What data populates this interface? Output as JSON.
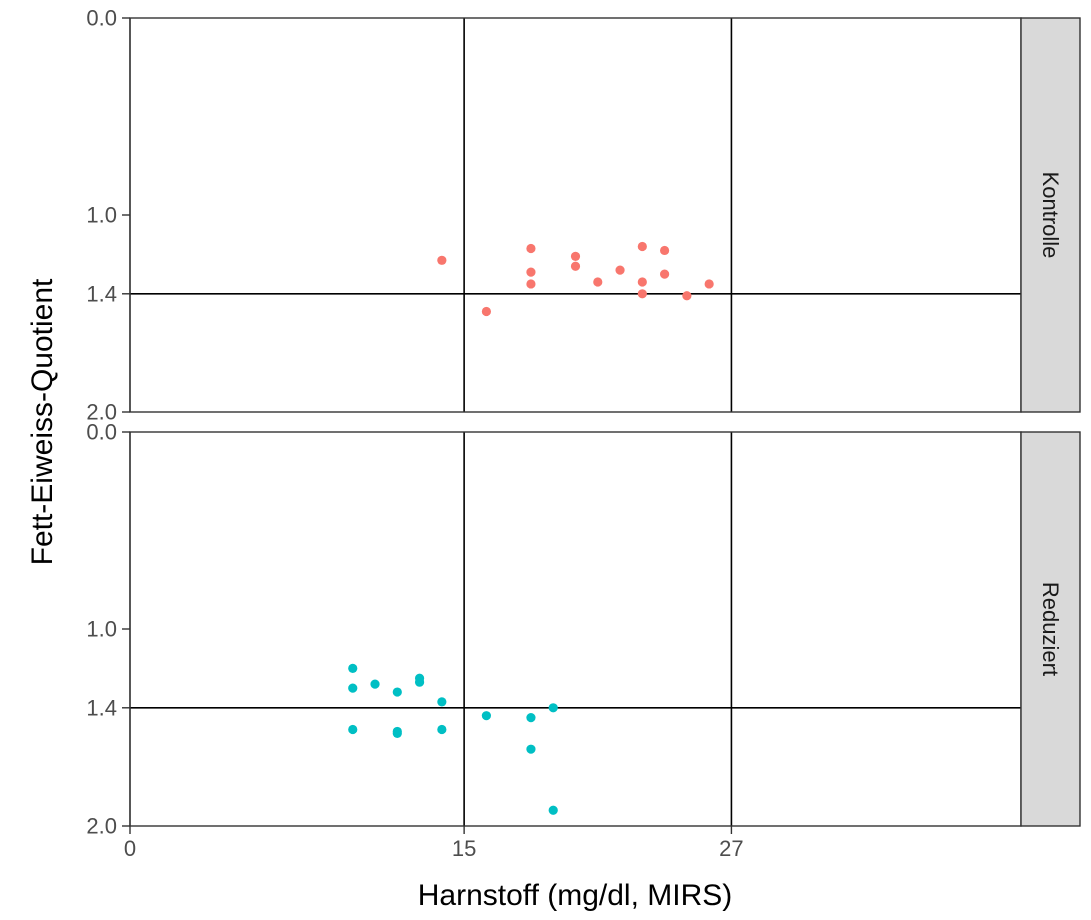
{
  "chart_data": {
    "type": "scatter",
    "xlabel": "Harnstoff (mg/dl, MIRS)",
    "ylabel": "Fett-Eiweiss-Quotient",
    "xlim": [
      0,
      40
    ],
    "ylim": [
      2.0,
      0.0
    ],
    "x_ticks": [
      0,
      15,
      27
    ],
    "y_ticks": [
      0.0,
      1.0,
      1.4,
      2.0
    ],
    "y_tick_labels": [
      "0.0",
      "1.0",
      "1.4",
      "2.0"
    ],
    "x_reference_lines": [
      15,
      27
    ],
    "y_reference_lines": [
      1.4
    ],
    "legend": "none",
    "facets": [
      {
        "label": "Kontrolle",
        "color": "#F8766D",
        "points": [
          {
            "x": 14,
            "y": 1.23
          },
          {
            "x": 16,
            "y": 1.49
          },
          {
            "x": 18,
            "y": 1.17
          },
          {
            "x": 18,
            "y": 1.29
          },
          {
            "x": 18,
            "y": 1.35
          },
          {
            "x": 20,
            "y": 1.21
          },
          {
            "x": 20,
            "y": 1.26
          },
          {
            "x": 21,
            "y": 1.34
          },
          {
            "x": 22,
            "y": 1.28
          },
          {
            "x": 23,
            "y": 1.16
          },
          {
            "x": 23,
            "y": 1.34
          },
          {
            "x": 23,
            "y": 1.4
          },
          {
            "x": 24,
            "y": 1.18
          },
          {
            "x": 24,
            "y": 1.3
          },
          {
            "x": 25,
            "y": 1.41
          },
          {
            "x": 26,
            "y": 1.35
          }
        ]
      },
      {
        "label": "Reduziert",
        "color": "#00BFC4",
        "points": [
          {
            "x": 10,
            "y": 1.2
          },
          {
            "x": 10,
            "y": 1.3
          },
          {
            "x": 10,
            "y": 1.51
          },
          {
            "x": 11,
            "y": 1.28
          },
          {
            "x": 12,
            "y": 1.32
          },
          {
            "x": 12,
            "y": 1.52
          },
          {
            "x": 12,
            "y": 1.53
          },
          {
            "x": 13,
            "y": 1.25
          },
          {
            "x": 13,
            "y": 1.27
          },
          {
            "x": 14,
            "y": 1.37
          },
          {
            "x": 14,
            "y": 1.51
          },
          {
            "x": 16,
            "y": 1.44
          },
          {
            "x": 18,
            "y": 1.45
          },
          {
            "x": 18,
            "y": 1.61
          },
          {
            "x": 19,
            "y": 1.4
          },
          {
            "x": 19,
            "y": 1.92
          }
        ]
      }
    ]
  }
}
